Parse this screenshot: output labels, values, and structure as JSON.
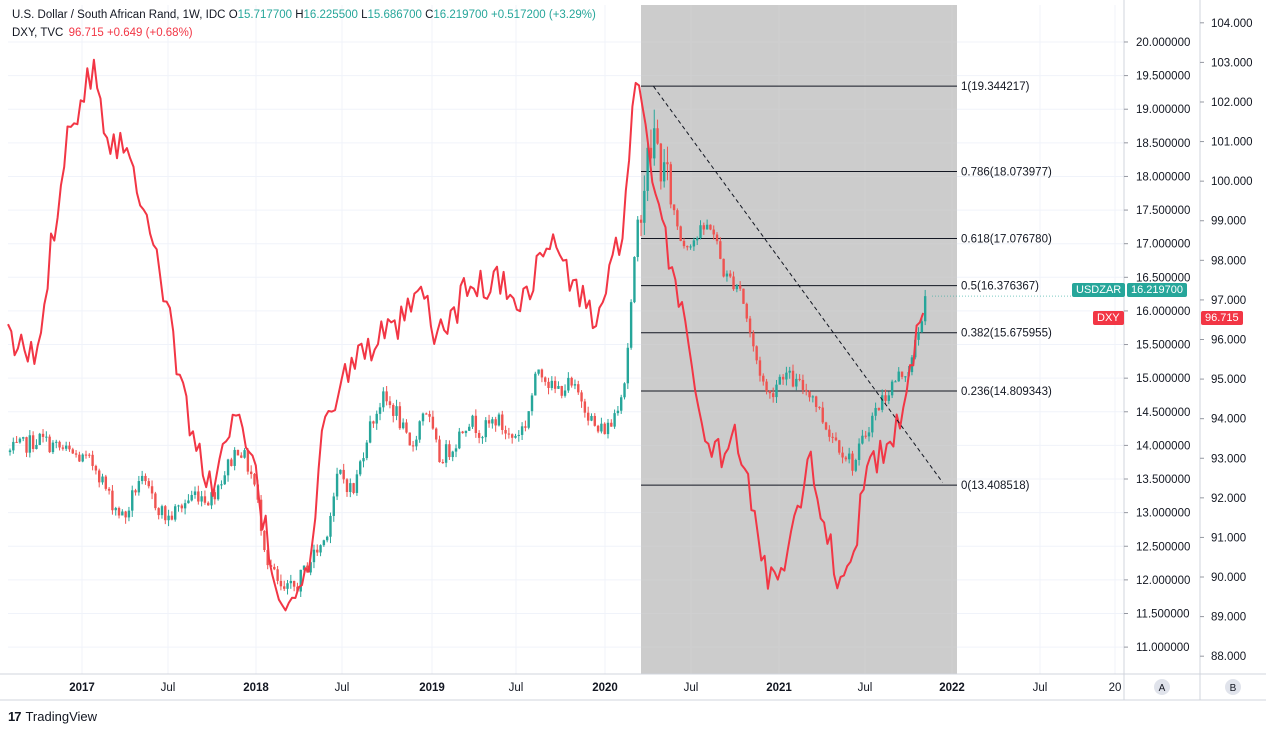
{
  "legend": {
    "main_symbol": "U.S. Dollar / South African Rand, 1W, IDC",
    "o_label": "O",
    "o_value": "15.717700",
    "h_label": "H",
    "h_value": "16.225500",
    "l_label": "L",
    "l_value": "15.686700",
    "c_label": "C",
    "c_value": "16.219700",
    "main_change": "+0.517200 (+3.29%)",
    "overlay_symbol": "DXY, TVC",
    "overlay_value": "96.715",
    "overlay_change": "+0.649 (+0.68%)"
  },
  "badges": {
    "usdzar_label": "USDZAR",
    "usdzar_value": "16.219700",
    "dxy_label": "DXY",
    "dxy_value": "96.715"
  },
  "axis_buttons": {
    "left": "A",
    "right": "B"
  },
  "brand": "TradingView",
  "colors": {
    "up": "#26a69a",
    "down": "#ef5350",
    "dxy": "#f23645",
    "fib_zone": "#cccccc",
    "badge_usdzar": "#26a69a",
    "badge_dxy": "#f23645"
  },
  "chart_data": {
    "type": "line",
    "x_tick_labels": [
      "2017",
      "Jul",
      "2018",
      "Jul",
      "2019",
      "Jul",
      "2020",
      "Jul",
      "2021",
      "Jul",
      "2022",
      "Jul",
      "20"
    ],
    "y_left_ticks": [
      "20.000000",
      "19.500000",
      "19.000000",
      "18.500000",
      "18.000000",
      "17.500000",
      "17.000000",
      "16.500000",
      "16.000000",
      "15.500000",
      "15.000000",
      "14.500000",
      "14.000000",
      "13.500000",
      "13.000000",
      "12.500000",
      "12.000000",
      "11.500000",
      "11.000000"
    ],
    "y_right_ticks": [
      "104.000",
      "103.000",
      "102.000",
      "101.000",
      "100.000",
      "99.000",
      "98.000",
      "97.000",
      "96.000",
      "95.000",
      "94.000",
      "93.000",
      "92.000",
      "91.000",
      "90.000",
      "89.000",
      "88.000"
    ],
    "y_left_range": [
      10.6,
      20.55
    ],
    "y_right_range": [
      87.55,
      104.45
    ],
    "fib_levels": [
      {
        "ratio": "1",
        "value": 19.344217,
        "label": "1(19.344217)"
      },
      {
        "ratio": "0.786",
        "value": 18.073977,
        "label": "0.786(18.073977)"
      },
      {
        "ratio": "0.618",
        "value": 17.07678,
        "label": "0.618(17.076780)"
      },
      {
        "ratio": "0.5",
        "value": 16.376367,
        "label": "0.5(16.376367)"
      },
      {
        "ratio": "0.382",
        "value": 15.675955,
        "label": "0.382(15.675955)"
      },
      {
        "ratio": "0.236",
        "value": 14.809343,
        "label": "0.236(14.809343)"
      },
      {
        "ratio": "0",
        "value": 13.408518,
        "label": "0(13.408518)"
      }
    ],
    "fib_time_range": [
      "2020-03",
      "2021-12"
    ],
    "trendline": {
      "start": [
        "2020-04",
        19.34
      ],
      "end": [
        "2021-12",
        13.45
      ]
    },
    "series": [
      {
        "name": "USDZAR",
        "kind": "candlestick-weekly",
        "x": [
          "2016-07",
          "2016-09",
          "2016-11",
          "2017-01",
          "2017-02",
          "2017-03",
          "2017-04",
          "2017-06",
          "2017-08",
          "2017-09",
          "2017-11",
          "2017-12",
          "2018-01",
          "2018-02",
          "2018-03",
          "2018-04",
          "2018-05",
          "2018-06",
          "2018-07",
          "2018-08",
          "2018-09",
          "2018-10",
          "2018-11",
          "2018-12",
          "2019-01",
          "2019-02",
          "2019-03",
          "2019-04",
          "2019-05",
          "2019-06",
          "2019-07",
          "2019-08",
          "2019-09",
          "2019-10",
          "2019-11",
          "2019-12",
          "2020-01",
          "2020-02",
          "2020-03",
          "2020-04",
          "2020-05",
          "2020-06",
          "2020-07",
          "2020-08",
          "2020-09",
          "2020-10",
          "2020-11",
          "2020-12",
          "2021-01",
          "2021-02",
          "2021-03",
          "2021-04",
          "2021-05",
          "2021-06",
          "2021-07",
          "2021-08",
          "2021-09",
          "2021-10",
          "2021-11"
        ],
        "values": [
          13.9,
          14.1,
          13.9,
          13.7,
          13.2,
          12.9,
          13.5,
          12.9,
          13.3,
          13.2,
          14.0,
          13.5,
          12.3,
          11.8,
          11.9,
          12.3,
          12.6,
          13.6,
          13.3,
          14.2,
          14.7,
          14.5,
          13.9,
          14.6,
          13.8,
          14.0,
          14.4,
          14.2,
          14.4,
          14.1,
          14.3,
          15.2,
          14.8,
          14.9,
          14.7,
          14.2,
          14.3,
          15.0,
          17.6,
          18.6,
          17.8,
          17.0,
          17.1,
          17.3,
          16.5,
          16.4,
          15.4,
          14.7,
          15.1,
          14.9,
          14.8,
          14.3,
          14.0,
          13.7,
          14.3,
          14.7,
          15.0,
          15.2,
          16.22
        ]
      },
      {
        "name": "DXY",
        "kind": "line",
        "x": [
          "2016-07",
          "2016-09",
          "2016-11",
          "2017-01",
          "2017-02",
          "2017-03",
          "2017-05",
          "2017-07",
          "2017-09",
          "2017-11",
          "2017-12",
          "2018-02",
          "2018-03",
          "2018-04",
          "2018-05",
          "2018-06",
          "2018-08",
          "2018-10",
          "2018-12",
          "2019-01",
          "2019-03",
          "2019-05",
          "2019-07",
          "2019-09",
          "2019-10",
          "2019-12",
          "2020-01",
          "2020-02",
          "2020-03",
          "2020-04",
          "2020-06",
          "2020-08",
          "2020-10",
          "2020-12",
          "2021-01",
          "2021-03",
          "2021-05",
          "2021-06",
          "2021-07",
          "2021-09",
          "2021-11"
        ],
        "values": [
          96.0,
          95.5,
          101.0,
          103.0,
          101.0,
          101.0,
          99.0,
          95.0,
          92.2,
          94.0,
          93.0,
          89.3,
          89.7,
          90.0,
          93.5,
          94.8,
          95.8,
          96.2,
          97.1,
          96.0,
          97.2,
          97.5,
          97.0,
          98.6,
          97.7,
          96.5,
          97.4,
          99.0,
          102.8,
          99.8,
          97.0,
          93.0,
          93.5,
          90.0,
          90.2,
          93.0,
          90.0,
          90.5,
          92.6,
          93.5,
          96.715
        ]
      }
    ]
  }
}
